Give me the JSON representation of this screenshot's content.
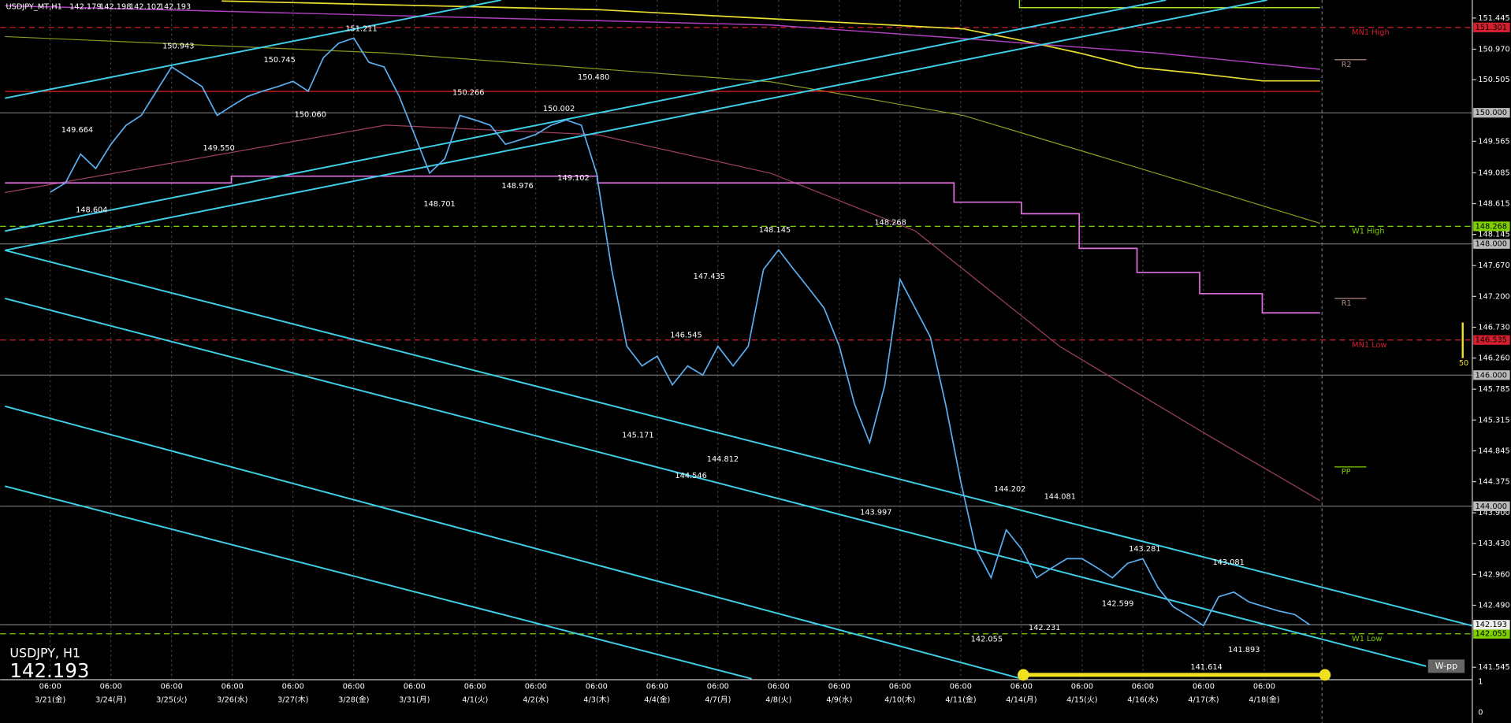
{
  "chart_data": {
    "type": "line",
    "symbol_info": "USDJPY_MT,H1",
    "ohlc": [
      142.179,
      142.198,
      142.102,
      142.193
    ],
    "pane_title": "USDJPY, H1",
    "last_price": 142.193,
    "categories": [
      "3/21(金)",
      null,
      null,
      null,
      "3/24(月)",
      null,
      null,
      null,
      "3/25(火)",
      null,
      null,
      null,
      "3/26(水)",
      null,
      null,
      null,
      "3/27(木)",
      null,
      null,
      null,
      "3/28(金)",
      null,
      null,
      null,
      "3/31(月)",
      null,
      null,
      null,
      "4/1(火)",
      null,
      null,
      null,
      "4/2(水)",
      null,
      null,
      null,
      "4/3(木)",
      null,
      null,
      null,
      "4/4(金)",
      null,
      null,
      null,
      "4/7(月)",
      null,
      null,
      null,
      "4/8(火)",
      null,
      null,
      null,
      "4/9(水)",
      null,
      null,
      null,
      "4/10(木)",
      null,
      null,
      null,
      "4/11(金)",
      null,
      null,
      null,
      "4/14(月)",
      null,
      null,
      null,
      "4/15(火)",
      null,
      null,
      null,
      "4/16(水)",
      null,
      null,
      null,
      "4/17(木)",
      null,
      null,
      null,
      "4/18(金)",
      null,
      null,
      null
    ],
    "time_labels": [
      "06:00",
      null,
      null,
      null,
      "06:00",
      null,
      null,
      null,
      "06:00",
      null,
      null,
      null,
      "06:00",
      null,
      null,
      null,
      "06:00",
      null,
      null,
      null,
      "06:00",
      null,
      null,
      null,
      "06:00",
      null,
      null,
      null,
      "06:00",
      null,
      null,
      null,
      "06:00",
      null,
      null,
      null,
      "06:00",
      null,
      null,
      null,
      "06:00",
      null,
      null,
      null,
      "06:00",
      null,
      null,
      null,
      "06:00",
      null,
      null,
      null,
      "06:00",
      null,
      null,
      null,
      "06:00",
      null,
      null,
      null,
      "06:00",
      null,
      null,
      null,
      "06:00",
      null,
      null,
      null,
      "06:00",
      null,
      null,
      null,
      "06:00",
      null,
      null,
      null,
      "06:00",
      null,
      null,
      null,
      "06:00",
      null,
      null,
      null
    ],
    "series": [
      {
        "color": "#5aaef0",
        "values": [
          148.79,
          148.93,
          149.37,
          149.15,
          149.52,
          149.81,
          149.96,
          150.33,
          150.7,
          150.55,
          150.4,
          149.96,
          150.11,
          150.25,
          150.33,
          150.4,
          150.48,
          150.33,
          150.84,
          151.06,
          151.14,
          150.77,
          150.7,
          150.25,
          149.67,
          149.08,
          149.3,
          149.96,
          149.89,
          149.81,
          149.52,
          149.59,
          149.67,
          149.81,
          149.89,
          149.81,
          149.08,
          147.61,
          146.44,
          146.14,
          146.29,
          145.85,
          146.14,
          146.0,
          146.44,
          146.14,
          146.44,
          147.61,
          147.91,
          147.61,
          147.32,
          147.02,
          146.44,
          145.56,
          144.97,
          145.85,
          147.46,
          147.02,
          146.58,
          145.56,
          144.38,
          143.35,
          142.91,
          143.64,
          143.35,
          142.91,
          143.06,
          143.2,
          143.2,
          143.06,
          142.91,
          143.13,
          143.2,
          142.76,
          142.47,
          142.33,
          142.18,
          142.62,
          142.69,
          142.54,
          142.47,
          142.4,
          142.35,
          142.193
        ]
      }
    ],
    "ylim": [
      141.37,
      151.72
    ],
    "yticks": [
      151.445,
      {
        "value": 150.97,
        "label": "150.970"
      },
      150.505,
      149.565,
      149.085,
      148.615,
      148.145,
      {
        "value": 147.67,
        "label": "147.670"
      },
      {
        "value": 147.2,
        "label": "147.200"
      },
      {
        "value": 146.73,
        "label": "146.730"
      },
      {
        "value": 146.26,
        "label": "146.260"
      },
      145.785,
      145.315,
      144.845,
      144.375,
      {
        "value": 143.9,
        "label": "143.900"
      },
      {
        "value": 143.43,
        "label": "143.430"
      },
      {
        "value": 142.96,
        "label": "142.960"
      },
      {
        "value": 142.49,
        "label": "142.490"
      },
      141.545
    ],
    "round_levels": [
      {
        "value": 150,
        "label": "150.000"
      },
      {
        "value": 148,
        "label": "148.000"
      },
      {
        "value": 146,
        "label": "146.000"
      },
      {
        "value": 144,
        "label": "144.000"
      }
    ],
    "levels": [
      {
        "name": "MN1 High",
        "value": 151.301,
        "color": "#d4202e"
      },
      {
        "name": "W1 High",
        "value": 148.268,
        "color": "#7fd000"
      },
      {
        "name": "MN1 Low",
        "value": 146.535,
        "color": "#d4202e"
      },
      {
        "name": "W1 Low",
        "value": 142.055,
        "color": "#7fd000"
      }
    ],
    "pivots": [
      {
        "name": "R2",
        "value": 150.81,
        "color": "#b08a80"
      },
      {
        "name": "R1",
        "value": 147.17,
        "color": "#b08a80"
      },
      {
        "name": "PP",
        "value": 144.6,
        "color": "#7fd000"
      }
    ],
    "wpp_label": "W-pp",
    "indicator_label": "50",
    "sub_yticks": [
      1,
      0
    ],
    "swing_labels": [
      "150.943",
      "150.745",
      "151.211",
      "149.664",
      "150.060",
      "149.550",
      "148.604",
      "150.266",
      "150.480",
      "150.002",
      "148.701",
      "148.976",
      "149.102",
      "147.435",
      "148.145",
      "148.268",
      "146.545",
      "145.171",
      "144.546",
      "144.812",
      "143.997",
      "144.202",
      "144.081",
      "143.281",
      "142.599",
      "143.081",
      "142.055",
      "142.231",
      "141.893",
      "141.614"
    ]
  }
}
